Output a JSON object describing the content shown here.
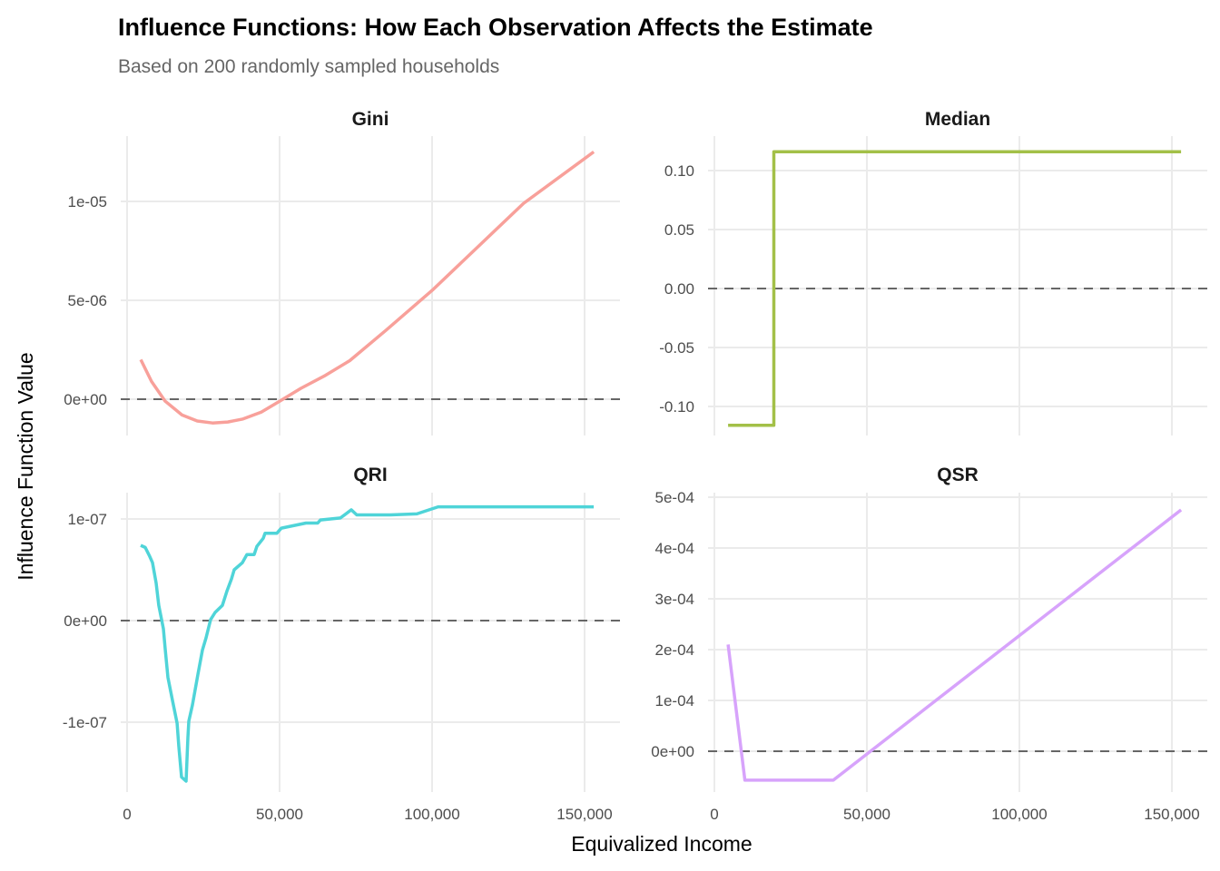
{
  "chart_data": {
    "type": "line",
    "title": "Influence Functions: How Each Observation Affects the Estimate",
    "subtitle": "Based on 200 randomly sampled households",
    "xlabel": "Equivalized Income",
    "ylabel": "Influence Function Value",
    "grid": true,
    "reference_line": {
      "y": 0,
      "style": "dashed",
      "color": "#666666"
    },
    "x_ticks": [
      0,
      50000,
      100000,
      150000
    ],
    "x_tick_labels": [
      "0",
      "50,000",
      "100,000",
      "150,000"
    ],
    "xlim": [
      -2083,
      161607
    ],
    "panels": [
      {
        "name": "Gini",
        "color": "#F8A09A",
        "ylim": [
          -1.835e-06,
          1.33e-05
        ],
        "y_ticks": [
          0,
          5e-06,
          1e-05
        ],
        "y_tick_labels": [
          "0e+00",
          "5e-06",
          "1e-05"
        ],
        "x": [
          4500,
          8000,
          12500,
          18000,
          23000,
          28000,
          33000,
          38000,
          44000,
          50000,
          57000,
          65000,
          73000,
          85000,
          100000,
          115000,
          130000,
          153000
        ],
        "y": [
          2e-06,
          9e-07,
          -1e-07,
          -8e-07,
          -1.1e-06,
          -1.2e-06,
          -1.15e-06,
          -1e-06,
          -6.5e-07,
          -1e-07,
          5.5e-07,
          1.2e-06,
          1.95e-06,
          3.5e-06,
          5.5e-06,
          7.7e-06,
          9.9e-06,
          1.25e-05
        ]
      },
      {
        "name": "Median",
        "color": "#A3C048",
        "ylim": [
          -0.1246,
          0.1292
        ],
        "y_ticks": [
          -0.1,
          -0.05,
          0,
          0.05,
          0.1
        ],
        "y_tick_labels": [
          "-0.10",
          "-0.05",
          "0.00",
          "0.05",
          "0.10"
        ],
        "x": [
          4500,
          19500,
          19500,
          153000
        ],
        "y": [
          -0.116,
          -0.116,
          0.116,
          0.116
        ]
      },
      {
        "name": "QRI",
        "color": "#4FD4D8",
        "ylim": [
          -1.6875e-07,
          1.259e-07
        ],
        "y_ticks": [
          -1e-07,
          0,
          1e-07
        ],
        "y_tick_labels": [
          "-1e-07",
          "0e+00",
          "1e-07"
        ],
        "x": [
          4460,
          5950,
          7440,
          8330,
          9520,
          10400,
          11900,
          12500,
          13400,
          14900,
          16400,
          16960,
          17860,
          19350,
          19940,
          20240,
          21430,
          22320,
          23210,
          24700,
          25900,
          27380,
          28870,
          31250,
          32740,
          34230,
          35120,
          37800,
          39290,
          41670,
          42560,
          44640,
          45240,
          49110,
          50600,
          58630,
          62500,
          63390,
          69940,
          73510,
          75300,
          86300,
          95000,
          102000,
          153000
        ],
        "y": [
          7.4e-08,
          7.2e-08,
          6.3e-08,
          5.7e-08,
          3.7e-08,
          1.5e-08,
          -8e-09,
          -2.8e-08,
          -5.6e-08,
          -7.9e-08,
          -1.01e-07,
          -1.24e-07,
          -1.54e-07,
          -1.58e-07,
          -1.15e-07,
          -9.9e-08,
          -8.3e-08,
          -6.8e-08,
          -5.3e-08,
          -2.9e-08,
          -1.7e-08,
          1e-09,
          8e-09,
          1.5e-08,
          2.9e-08,
          4.1e-08,
          5e-08,
          5.7e-08,
          6.5e-08,
          6.5e-08,
          7.3e-08,
          8.1e-08,
          8.6e-08,
          8.6e-08,
          9.1e-08,
          9.6e-08,
          9.6e-08,
          9.9e-08,
          1.01e-07,
          1.09e-07,
          1.04e-07,
          1.04e-07,
          1.05e-07,
          1.12e-07,
          1.12e-07
        ]
      },
      {
        "name": "QSR",
        "color": "#D7A3FB",
        "ylim": [
          -8.04e-05,
          0.0005089
        ],
        "y_ticks": [
          0,
          0.0001,
          0.0002,
          0.0003,
          0.0004,
          0.0005
        ],
        "y_tick_labels": [
          "0e+00",
          "1e-04",
          "2e-04",
          "3e-04",
          "4e-04",
          "5e-04"
        ],
        "x": [
          4500,
          10000,
          39000,
          153000
        ],
        "y": [
          0.00021,
          -5.7e-05,
          -5.7e-05,
          0.000475
        ]
      }
    ]
  }
}
